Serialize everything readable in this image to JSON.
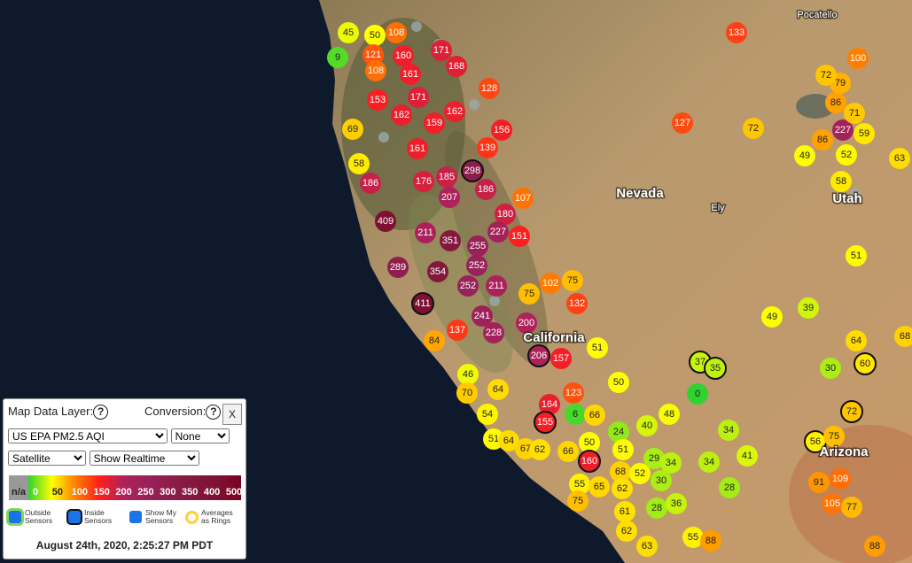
{
  "map": {
    "place_labels": [
      "Pocatello",
      "Nevada",
      "Ely",
      "Utah",
      "California",
      "Arizona"
    ],
    "sensors": [
      45,
      50,
      108,
      9,
      121,
      160,
      171,
      168,
      108,
      161,
      128,
      153,
      171,
      162,
      162,
      159,
      156,
      69,
      139,
      161,
      58,
      298,
      185,
      176,
      186,
      207,
      186,
      107,
      180,
      409,
      227,
      151,
      211,
      351,
      255,
      289,
      354,
      252,
      252,
      211,
      102,
      75,
      75,
      132,
      411,
      241,
      200,
      137,
      84,
      228,
      206,
      157,
      51,
      50,
      46,
      70,
      64,
      164,
      123,
      6,
      66,
      155,
      54,
      51,
      64,
      67,
      62,
      50,
      24,
      40,
      48,
      66,
      160,
      51,
      55,
      65,
      68,
      52,
      29,
      34,
      30,
      62,
      75,
      61,
      62,
      28,
      36,
      63,
      55,
      88,
      37,
      35,
      0,
      34,
      34,
      41,
      28,
      49,
      39,
      30,
      64,
      60,
      68,
      72,
      56,
      75,
      91,
      109,
      105,
      77,
      88,
      72,
      49,
      86,
      227,
      59,
      52,
      58,
      71,
      86,
      79,
      72,
      100,
      133,
      127,
      63,
      51
    ]
  },
  "panel": {
    "layer_label": "Map Data Layer:",
    "help": "?",
    "conversion_label": "Conversion:",
    "close": "X",
    "layer_select": "US EPA PM2.5 AQI",
    "conversion_select": "None",
    "basemap_select": "Satellite",
    "mode_select": "Show Realtime",
    "legend": {
      "na": "n/a",
      "scale": [
        {
          "value": 0,
          "color": "#2fd32f"
        },
        {
          "value": 50,
          "color": "#ffff00"
        },
        {
          "value": 100,
          "color": "#ff7e00"
        },
        {
          "value": 150,
          "color": "#ff1e1e"
        },
        {
          "value": 200,
          "color": "#b0225a"
        },
        {
          "value": 250,
          "color": "#99225a"
        },
        {
          "value": 300,
          "color": "#8c1d4a"
        },
        {
          "value": 350,
          "color": "#84183d"
        },
        {
          "value": 400,
          "color": "#7e1232"
        },
        {
          "value": 500,
          "color": "#7e0023"
        }
      ]
    },
    "checkboxes": [
      "Outside Sensors",
      "Inside Sensors",
      "Show My Sensors",
      "Averages as Rings"
    ],
    "timestamp": "August 24th, 2020, 2:25:27 PM PDT"
  }
}
